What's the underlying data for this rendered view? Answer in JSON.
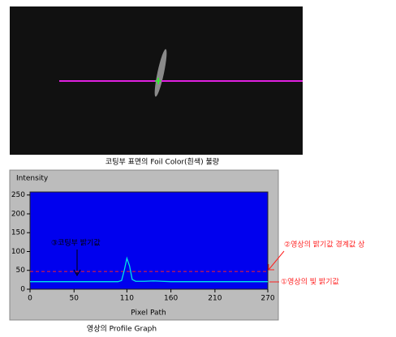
{
  "image": {
    "caption": "코팅부 표면의 Foil Color(흰색) 불량"
  },
  "chart_data": {
    "type": "line",
    "title": "Intensity",
    "x_label": "Pixel Path",
    "caption": "영상의 Profile Graph",
    "x": [
      0,
      20,
      40,
      60,
      80,
      100,
      104,
      107,
      110,
      113,
      116,
      120,
      130,
      140,
      150,
      160,
      180,
      200,
      220,
      240,
      260,
      270
    ],
    "series": [
      {
        "color": "#00e5e5",
        "values": [
          20,
          20,
          20,
          20,
          20,
          20,
          23,
          50,
          82,
          62,
          26,
          21,
          21,
          22,
          21,
          20,
          20,
          20,
          20,
          20,
          20,
          20
        ]
      }
    ],
    "reference_lines": [
      {
        "value": 47,
        "color": "#ff2020",
        "style": "dashed"
      }
    ],
    "xlim": [
      0,
      270
    ],
    "ylim": [
      0,
      258
    ],
    "xticks": [
      0,
      50,
      110,
      160,
      210,
      270
    ],
    "yticks": [
      0,
      50,
      100,
      150,
      200,
      250
    ],
    "annotations": [
      {
        "text": "③코팅부 밝기값"
      },
      {
        "text": "②영상의 밝기값 경계값 상"
      },
      {
        "text": "①영상의 빛 밝기값"
      }
    ]
  }
}
